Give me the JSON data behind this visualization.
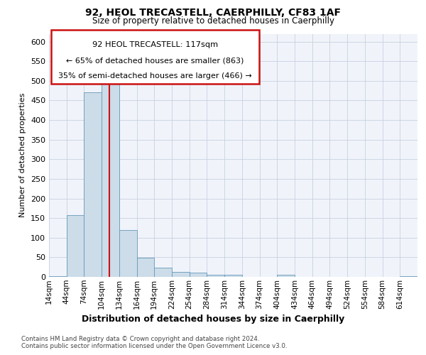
{
  "title": "92, HEOL TRECASTELL, CAERPHILLY, CF83 1AF",
  "subtitle": "Size of property relative to detached houses in Caerphilly",
  "xlabel_bottom": "Distribution of detached houses by size in Caerphilly",
  "ylabel": "Number of detached properties",
  "categories": [
    "14sqm",
    "44sqm",
    "74sqm",
    "104sqm",
    "134sqm",
    "164sqm",
    "194sqm",
    "224sqm",
    "254sqm",
    "284sqm",
    "314sqm",
    "344sqm",
    "374sqm",
    "404sqm",
    "434sqm",
    "464sqm",
    "494sqm",
    "524sqm",
    "554sqm",
    "584sqm",
    "614sqm"
  ],
  "values": [
    2,
    158,
    470,
    497,
    119,
    48,
    24,
    13,
    10,
    6,
    5,
    0,
    0,
    5,
    0,
    0,
    0,
    0,
    0,
    0,
    2
  ],
  "bar_color": "#ccdce8",
  "bar_edge_color": "#6699bb",
  "vline_x_index": 3,
  "vline_color": "#cc1111",
  "annotation_line1": "92 HEOL TRECASTELL: 117sqm",
  "annotation_line2": "← 65% of detached houses are smaller (863)",
  "annotation_line3": "35% of semi-detached houses are larger (466) →",
  "annotation_box_color": "#cc1111",
  "ylim": [
    0,
    620
  ],
  "yticks": [
    0,
    50,
    100,
    150,
    200,
    250,
    300,
    350,
    400,
    450,
    500,
    550,
    600
  ],
  "footer_line1": "Contains HM Land Registry data © Crown copyright and database right 2024.",
  "footer_line2": "Contains public sector information licensed under the Open Government Licence v3.0.",
  "bg_color": "#f0f4fa",
  "grid_color": "#c8d0e0"
}
